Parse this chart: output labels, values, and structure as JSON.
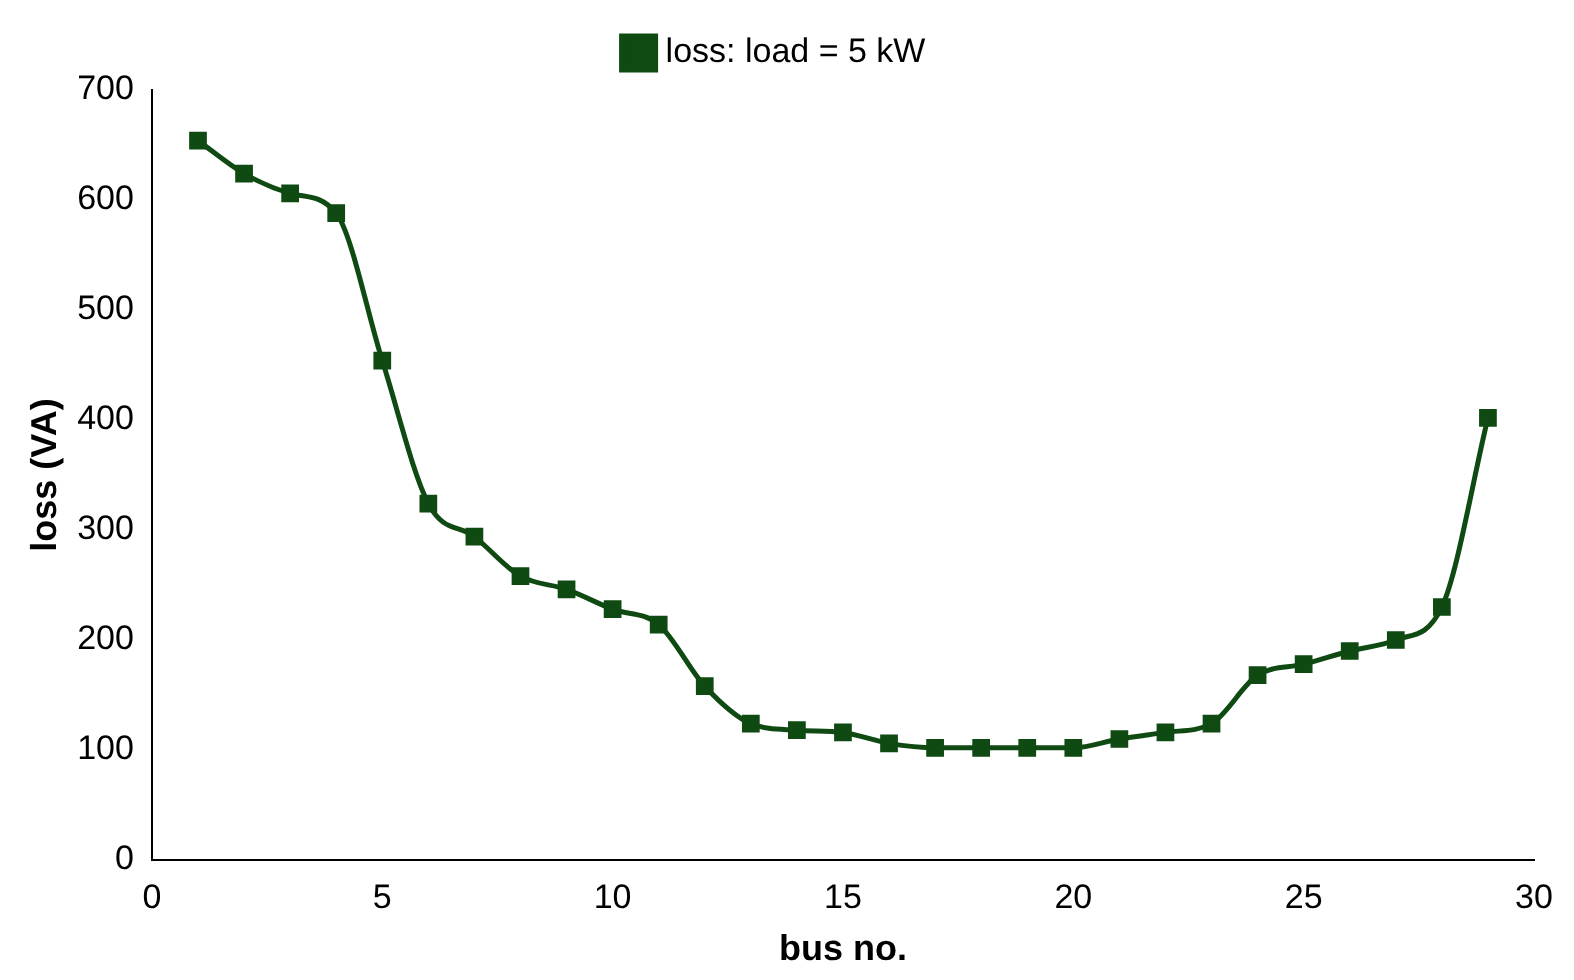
{
  "chart_data": {
    "type": "line",
    "xlabel": "bus no.",
    "ylabel": "loss (VA)",
    "x": [
      1,
      2,
      3,
      4,
      5,
      6,
      7,
      8,
      9,
      10,
      11,
      12,
      13,
      14,
      15,
      16,
      17,
      18,
      19,
      20,
      21,
      22,
      23,
      24,
      25,
      26,
      27,
      28,
      29
    ],
    "series": [
      {
        "name": "loss: load = 5 kW",
        "color": "#0f4a12",
        "values": [
          654,
          624,
          606,
          588,
          454,
          324,
          294,
          258,
          246,
          228,
          214,
          158,
          124,
          118,
          116,
          106,
          102,
          102,
          102,
          102,
          110,
          116,
          124,
          168,
          178,
          190,
          200,
          230,
          402
        ]
      }
    ],
    "xlim": [
      0,
      30
    ],
    "xticks": [
      0,
      5,
      10,
      15,
      20,
      25,
      30
    ],
    "ylim": [
      0,
      700
    ],
    "yticks": [
      0,
      100,
      200,
      300,
      400,
      500,
      600,
      700
    ],
    "grid": false,
    "legend": "top",
    "marker": "square",
    "line_style": "solid"
  }
}
